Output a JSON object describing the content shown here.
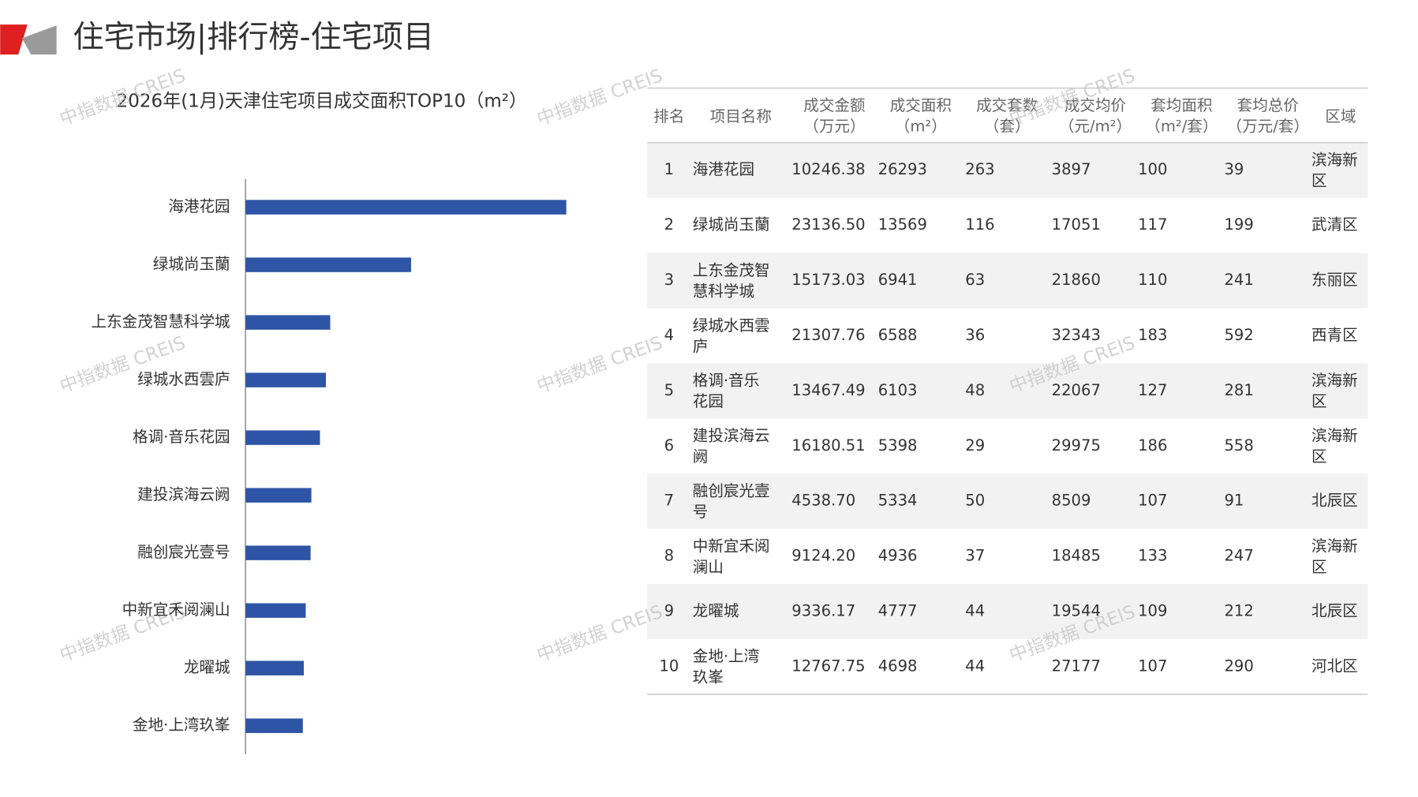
{
  "header": {
    "title": "住宅市场|排行榜-住宅项目"
  },
  "watermark": "中指数据 CREIS",
  "chart_data": {
    "type": "bar",
    "orientation": "horizontal",
    "title": "2026年(1月)天津住宅项目成交面积TOP10（m²）",
    "categories": [
      "海港花园",
      "绿城尚玉蘭",
      "上东金茂智慧科学城",
      "绿城水西雲庐",
      "格调·音乐花园",
      "建投滨海云阙",
      "融创宸光壹号",
      "中新宜禾阅澜山",
      "龙曜城",
      "金地·上湾玖峯"
    ],
    "values": [
      26293,
      13569,
      6941,
      6588,
      6103,
      5398,
      5334,
      4936,
      4777,
      4698
    ],
    "color": "#2e55a5"
  },
  "table": {
    "columns": [
      [
        "排名"
      ],
      [
        "项目名称"
      ],
      [
        "成交金额",
        "（万元）"
      ],
      [
        "成交面积",
        "（m²）"
      ],
      [
        "成交套数",
        "（套）"
      ],
      [
        "成交均价",
        "（元/m²）"
      ],
      [
        "套均面积",
        "（m²/套）"
      ],
      [
        "套均总价",
        "（万元/套）"
      ],
      [
        "区域"
      ]
    ],
    "rows": [
      [
        "1",
        "海港花园",
        "10246.38",
        "26293",
        "263",
        "3897",
        "100",
        "39",
        "滨海新区"
      ],
      [
        "2",
        "绿城尚玉蘭",
        "23136.50",
        "13569",
        "116",
        "17051",
        "117",
        "199",
        "武清区"
      ],
      [
        "3",
        "上东金茂智慧科学城",
        "15173.03",
        "6941",
        "63",
        "21860",
        "110",
        "241",
        "东丽区"
      ],
      [
        "4",
        "绿城水西雲庐",
        "21307.76",
        "6588",
        "36",
        "32343",
        "183",
        "592",
        "西青区"
      ],
      [
        "5",
        "格调·音乐花园",
        "13467.49",
        "6103",
        "48",
        "22067",
        "127",
        "281",
        "滨海新区"
      ],
      [
        "6",
        "建投滨海云阙",
        "16180.51",
        "5398",
        "29",
        "29975",
        "186",
        "558",
        "滨海新区"
      ],
      [
        "7",
        "融创宸光壹号",
        "4538.70",
        "5334",
        "50",
        "8509",
        "107",
        "91",
        "北辰区"
      ],
      [
        "8",
        "中新宜禾阅澜山",
        "9124.20",
        "4936",
        "37",
        "18485",
        "133",
        "247",
        "滨海新区"
      ],
      [
        "9",
        "龙曜城",
        "9336.17",
        "4777",
        "44",
        "19544",
        "109",
        "212",
        "北辰区"
      ],
      [
        "10",
        "金地·上湾玖峯",
        "12767.75",
        "4698",
        "44",
        "27177",
        "107",
        "290",
        "河北区"
      ]
    ]
  }
}
